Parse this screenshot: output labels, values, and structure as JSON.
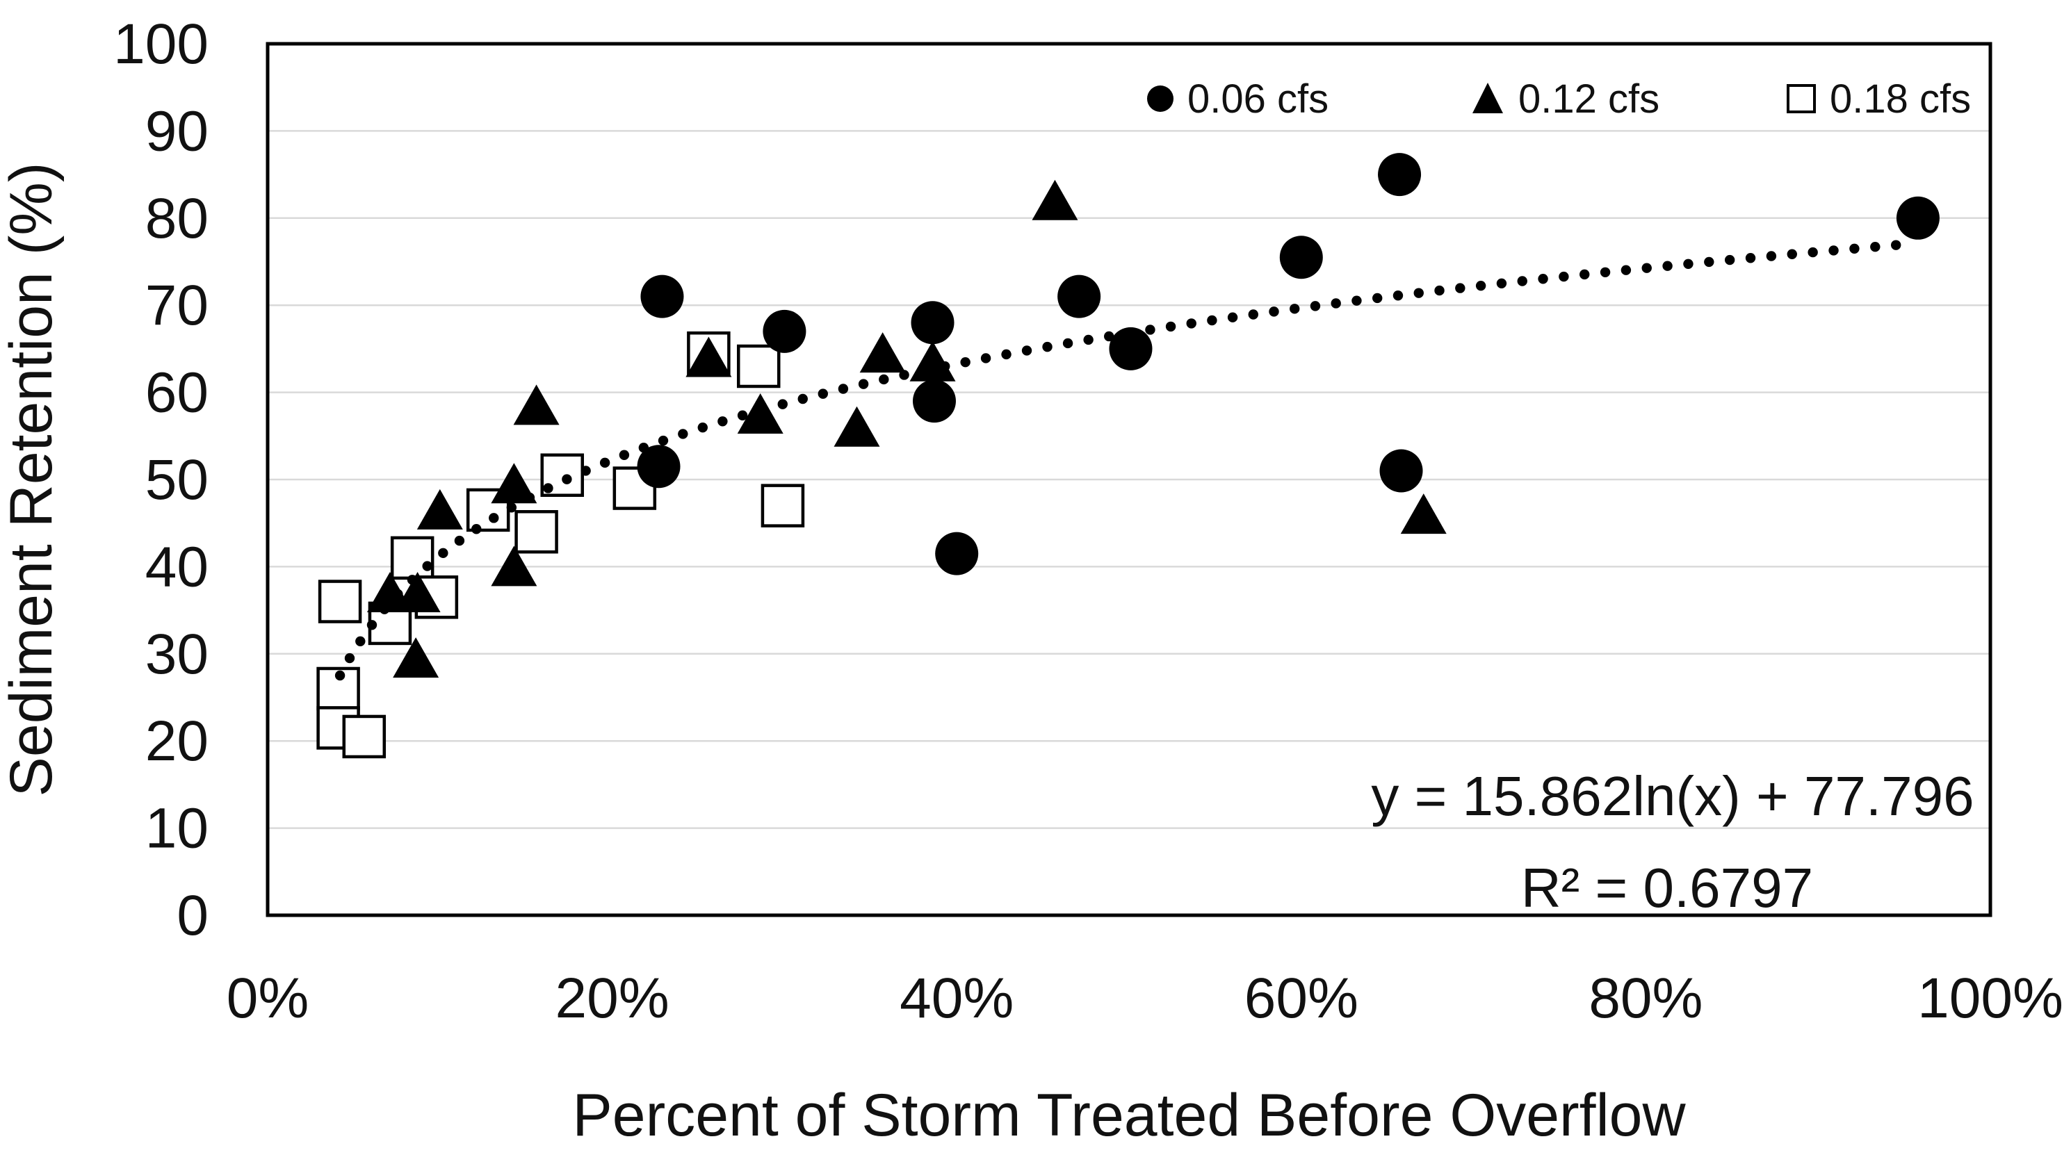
{
  "chart_data": {
    "type": "scatter",
    "title": "",
    "xlabel": "Percent of Storm Treated Before Overflow",
    "ylabel": "Sediment Retention (%)",
    "x_axis": {
      "min": 0,
      "max": 100,
      "ticks": [
        {
          "value": 0,
          "label": "0%"
        },
        {
          "value": 20,
          "label": "20%"
        },
        {
          "value": 40,
          "label": "40%"
        },
        {
          "value": 60,
          "label": "60%"
        },
        {
          "value": 80,
          "label": "80%"
        },
        {
          "value": 100,
          "label": "100%"
        }
      ]
    },
    "y_axis": {
      "min": 0,
      "max": 100,
      "tick_values": [
        0,
        10,
        20,
        30,
        40,
        50,
        60,
        70,
        80,
        90,
        100
      ],
      "tick_labels": [
        "0",
        "10",
        "20",
        "30",
        "40",
        "50",
        "60",
        "70",
        "80",
        "90",
        "100"
      ]
    },
    "grid": "horizontal-only",
    "legend": {
      "position": "top-right-inside",
      "items": [
        {
          "label": "0.06 cfs",
          "marker": "filled-circle"
        },
        {
          "label": "0.12 cfs",
          "marker": "filled-triangle"
        },
        {
          "label": "0.18 cfs",
          "marker": "open-square"
        }
      ]
    },
    "series": [
      {
        "name": "0.06 cfs",
        "marker": "filled-circle",
        "points": [
          [
            22.7,
            51.5
          ],
          [
            22.9,
            71
          ],
          [
            30,
            67
          ],
          [
            38.6,
            68
          ],
          [
            38.7,
            59
          ],
          [
            40,
            41.5
          ],
          [
            47.1,
            71
          ],
          [
            50.1,
            65
          ],
          [
            60,
            75.5
          ],
          [
            65.7,
            85
          ],
          [
            65.8,
            51
          ],
          [
            95.8,
            80
          ]
        ]
      },
      {
        "name": "0.12 cfs",
        "marker": "filled-triangle",
        "points": [
          [
            7.1,
            37
          ],
          [
            8.7,
            37
          ],
          [
            8.6,
            29.5
          ],
          [
            10,
            46.5
          ],
          [
            14.3,
            49.5
          ],
          [
            14.3,
            40
          ],
          [
            15.6,
            58.5
          ],
          [
            25.6,
            64
          ],
          [
            28.6,
            57.5
          ],
          [
            34.2,
            56
          ],
          [
            35.7,
            64.5
          ],
          [
            38.6,
            63.5
          ],
          [
            45.7,
            82
          ],
          [
            67.1,
            46
          ]
        ]
      },
      {
        "name": "0.18 cfs",
        "marker": "open-square",
        "points": [
          [
            4.2,
            36
          ],
          [
            4.1,
            26
          ],
          [
            4.1,
            21.5
          ],
          [
            5.6,
            20.5
          ],
          [
            7.1,
            33.5
          ],
          [
            8.4,
            41
          ],
          [
            9.8,
            36.5
          ],
          [
            12.8,
            46.5
          ],
          [
            15.6,
            44
          ],
          [
            17.1,
            50.5
          ],
          [
            21.3,
            49
          ],
          [
            25.6,
            64.5
          ],
          [
            28.5,
            63
          ],
          [
            29.9,
            47
          ]
        ]
      }
    ],
    "trendline": {
      "type": "logarithmic",
      "style": "dotted",
      "a": 15.862,
      "b": 77.796,
      "x_start_pct": 4.2,
      "x_end_pct": 95.5,
      "equation": "y = 15.862ln(x) + 77.796",
      "r_squared_label": "R² = 0.6797"
    },
    "colors": {
      "marker": "#000000",
      "text": "#111111",
      "gridline": "#d9d9d9",
      "plot_border": "#000000",
      "background": "#ffffff"
    }
  }
}
